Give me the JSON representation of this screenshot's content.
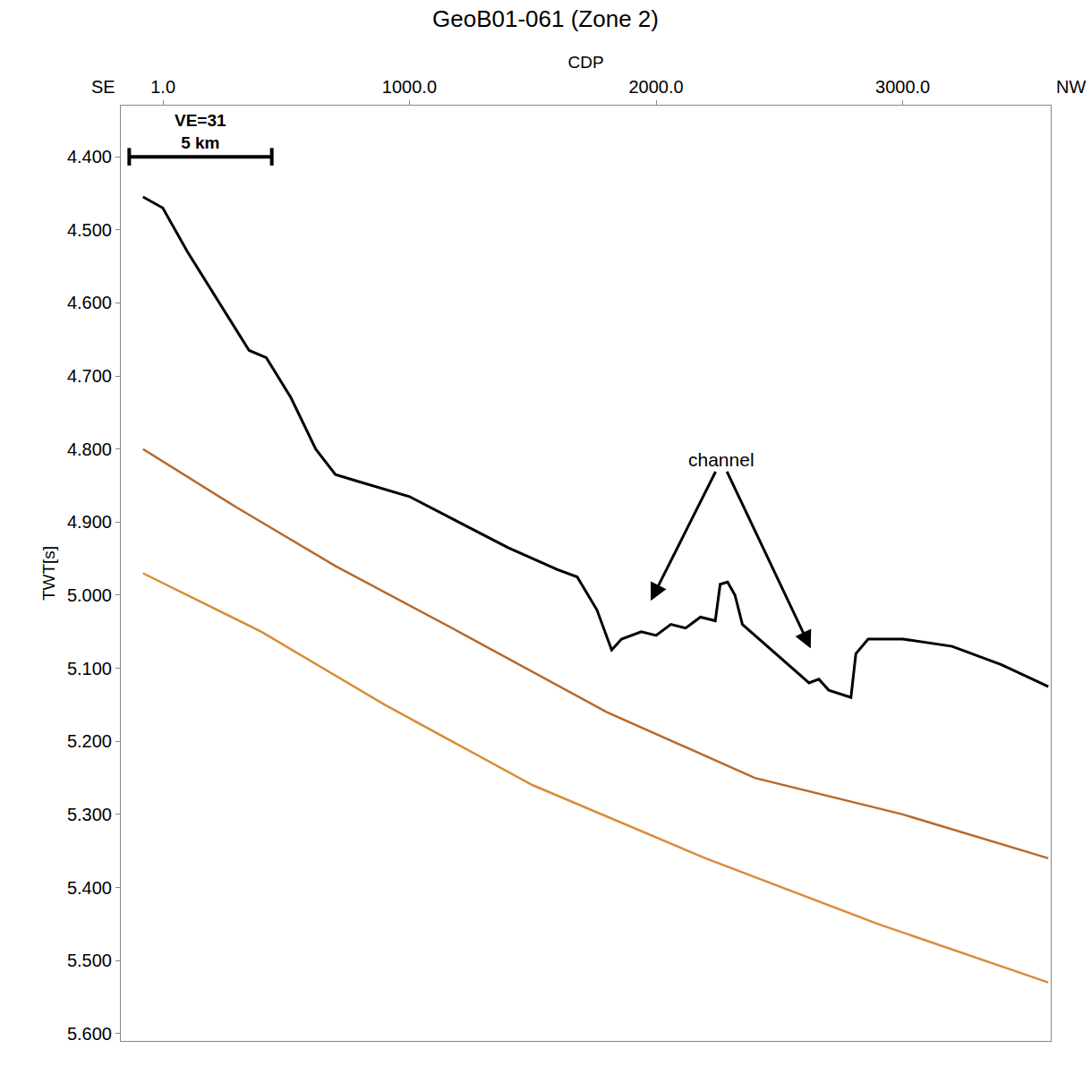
{
  "chart_data": {
    "type": "line",
    "title": "GeoB01-061 (Zone 2)",
    "x_label": "CDP",
    "y_label": "TWT[s]",
    "direction_labels": [
      "SE",
      "NW"
    ],
    "xlim": [
      -170,
      3600
    ],
    "ylim": [
      5.61,
      4.33
    ],
    "xticks": [
      {
        "value": 1,
        "label": "1.0"
      },
      {
        "value": 1000,
        "label": "1000.0"
      },
      {
        "value": 2000,
        "label": "2000.0"
      },
      {
        "value": 3000,
        "label": "3000.0"
      }
    ],
    "yticks": [
      {
        "value": 4.4,
        "label": "4.400"
      },
      {
        "value": 4.5,
        "label": "4.500"
      },
      {
        "value": 4.6,
        "label": "4.600"
      },
      {
        "value": 4.7,
        "label": "4.700"
      },
      {
        "value": 4.8,
        "label": "4.800"
      },
      {
        "value": 4.9,
        "label": "4.900"
      },
      {
        "value": 5.0,
        "label": "5.000"
      },
      {
        "value": 5.1,
        "label": "5.100"
      },
      {
        "value": 5.2,
        "label": "5.200"
      },
      {
        "value": 5.3,
        "label": "5.300"
      },
      {
        "value": 5.4,
        "label": "5.400"
      },
      {
        "value": 5.5,
        "label": "5.500"
      },
      {
        "value": 5.6,
        "label": "5.600"
      }
    ],
    "grid": false,
    "series": [
      {
        "color": "#000000",
        "x": [
          -80,
          0,
          100,
          250,
          350,
          420,
          520,
          620,
          700,
          800,
          1000,
          1200,
          1400,
          1600,
          1680,
          1760,
          1820,
          1860,
          1940,
          2000,
          2060,
          2120,
          2180,
          2240,
          2260,
          2290,
          2320,
          2350,
          2450,
          2550,
          2620,
          2660,
          2700,
          2790,
          2810,
          2860,
          3000,
          3200,
          3400,
          3590
        ],
        "values": [
          4.455,
          4.47,
          4.53,
          4.61,
          4.665,
          4.675,
          4.73,
          4.8,
          4.835,
          4.845,
          4.865,
          4.9,
          4.935,
          4.965,
          4.975,
          5.02,
          5.075,
          5.06,
          5.05,
          5.055,
          5.04,
          5.045,
          5.03,
          5.035,
          4.985,
          4.982,
          5.0,
          5.04,
          5.07,
          5.1,
          5.12,
          5.115,
          5.13,
          5.14,
          5.08,
          5.06,
          5.06,
          5.07,
          5.095,
          5.125
        ]
      },
      {
        "color": "#b8692a",
        "x": [
          -80,
          300,
          700,
          1200,
          1800,
          2400,
          3000,
          3590
        ],
        "values": [
          4.8,
          4.88,
          4.96,
          5.05,
          5.16,
          5.25,
          5.3,
          5.36
        ]
      },
      {
        "color": "#d98c3a",
        "x": [
          -80,
          400,
          900,
          1500,
          2200,
          2900,
          3590
        ],
        "values": [
          4.97,
          5.05,
          5.15,
          5.26,
          5.36,
          5.45,
          5.53
        ]
      }
    ],
    "annotations": [
      {
        "text": "channel",
        "x": 2265,
        "y": 4.815,
        "targets": [
          {
            "x": 1975,
            "y": 5.01
          },
          {
            "x": 2630,
            "y": 5.075
          }
        ]
      }
    ],
    "scale_bar": {
      "note": "VE=31",
      "text": "5 km",
      "x": [
        -136,
        442
      ],
      "y": 4.4
    }
  }
}
